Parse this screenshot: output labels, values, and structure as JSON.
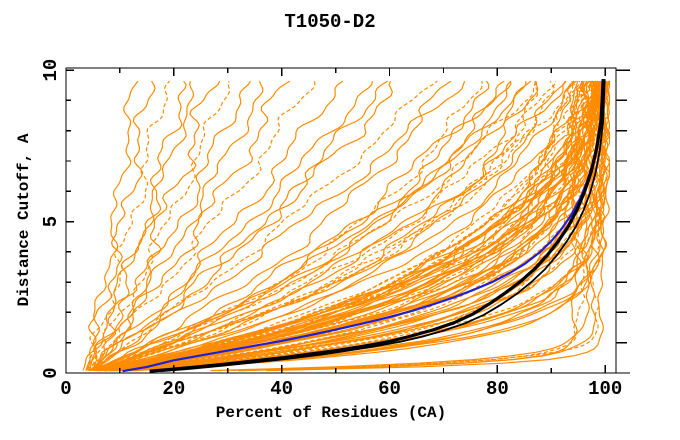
{
  "chart_data": {
    "type": "line",
    "title": "T1050-D2",
    "xlabel": "Percent of Residues (CA)",
    "ylabel": "Distance Cutoff, A",
    "xlim": [
      0,
      102
    ],
    "ylim": [
      0,
      10.07
    ],
    "x_major_ticks": [
      0,
      20,
      40,
      60,
      80,
      100
    ],
    "x_minor_ticks": [
      10,
      30,
      50,
      70,
      90
    ],
    "y_major_ticks": [
      0,
      5,
      10
    ],
    "y_minor_ticks": [
      1,
      2,
      3,
      4,
      6,
      7,
      8,
      9
    ],
    "grid": false,
    "legend": "none",
    "colors": {
      "ensemble": "#ff8c00",
      "highlight": "#1f1fd8",
      "reference": "#000000",
      "frame": "#000000",
      "background": "#ffffff"
    },
    "series": [
      {
        "name": "highlighted-model-blue",
        "color": "#1f1fd8",
        "width": 2.2,
        "dashed": false,
        "points": [
          [
            10.5,
            0.06
          ],
          [
            15,
            0.2
          ],
          [
            20,
            0.42
          ],
          [
            25,
            0.58
          ],
          [
            30,
            0.74
          ],
          [
            35,
            0.9
          ],
          [
            40,
            1.06
          ],
          [
            45,
            1.24
          ],
          [
            50,
            1.43
          ],
          [
            55,
            1.63
          ],
          [
            60,
            1.85
          ],
          [
            64,
            2.04
          ],
          [
            68,
            2.26
          ],
          [
            72,
            2.5
          ],
          [
            75.5,
            2.74
          ],
          [
            79,
            3.0
          ],
          [
            82.3,
            3.3
          ],
          [
            85.2,
            3.62
          ],
          [
            87.8,
            3.98
          ],
          [
            90,
            4.35
          ],
          [
            92,
            4.78
          ],
          [
            93.8,
            5.25
          ],
          [
            95.4,
            5.78
          ],
          [
            96.7,
            6.35
          ],
          [
            97.8,
            6.98
          ],
          [
            98.6,
            7.65
          ],
          [
            99.2,
            8.4
          ],
          [
            99.5,
            9.7
          ]
        ]
      },
      {
        "name": "reference-model-thick-black",
        "color": "#000000",
        "width": 3.2,
        "dashed": false,
        "points": [
          [
            15.5,
            0.06
          ],
          [
            20,
            0.13
          ],
          [
            25,
            0.21
          ],
          [
            30,
            0.3
          ],
          [
            35,
            0.4
          ],
          [
            40,
            0.5
          ],
          [
            45,
            0.62
          ],
          [
            50,
            0.74
          ],
          [
            55,
            0.88
          ],
          [
            60,
            1.04
          ],
          [
            64,
            1.22
          ],
          [
            68,
            1.42
          ],
          [
            72,
            1.66
          ],
          [
            75.5,
            1.95
          ],
          [
            78.5,
            2.28
          ],
          [
            81.5,
            2.65
          ],
          [
            84.5,
            3.05
          ],
          [
            87,
            3.45
          ],
          [
            89.3,
            3.9
          ],
          [
            91.3,
            4.35
          ],
          [
            93.2,
            4.85
          ],
          [
            94.8,
            5.4
          ],
          [
            96.2,
            6.0
          ],
          [
            97.4,
            6.65
          ],
          [
            98.4,
            7.4
          ],
          [
            99.2,
            8.3
          ],
          [
            99.7,
            9.7
          ]
        ]
      },
      {
        "name": "reference-model-thin-black",
        "color": "#000000",
        "width": 1.8,
        "dashed": false,
        "points": [
          [
            17.5,
            0.06
          ],
          [
            23,
            0.14
          ],
          [
            29,
            0.24
          ],
          [
            35,
            0.35
          ],
          [
            41,
            0.47
          ],
          [
            47,
            0.6
          ],
          [
            52,
            0.73
          ],
          [
            57,
            0.87
          ],
          [
            62,
            1.03
          ],
          [
            66,
            1.2
          ],
          [
            70,
            1.4
          ],
          [
            74,
            1.64
          ],
          [
            77.5,
            1.92
          ],
          [
            80.5,
            2.24
          ],
          [
            83.5,
            2.6
          ],
          [
            86.3,
            3.0
          ],
          [
            88.8,
            3.42
          ],
          [
            91,
            3.88
          ],
          [
            92.9,
            4.35
          ],
          [
            94.6,
            4.85
          ],
          [
            96,
            5.38
          ],
          [
            97.2,
            5.95
          ],
          [
            98.2,
            6.6
          ],
          [
            99,
            7.35
          ],
          [
            99.6,
            8.3
          ],
          [
            99.9,
            9.7
          ]
        ]
      }
    ],
    "ensemble": {
      "name": "predicted-model-curves",
      "color": "#ff8c00",
      "width": 1.2,
      "cutoff_range": [
        0.08,
        9.7
      ],
      "curve_model": "pct(c) = s + (e-s)*(1-exp(-c/tau))/(1-exp(-10/tau)) + jitter(j,ph); d=1 dashed",
      "curves": [
        [
          4,
          13,
          22,
          1.5,
          0.5,
          0
        ],
        [
          3.5,
          16,
          18,
          2,
          1.7,
          0
        ],
        [
          4,
          19,
          26,
          1.8,
          2.9,
          1
        ],
        [
          5,
          22,
          15,
          2.2,
          4.1,
          0
        ],
        [
          3,
          25,
          30,
          1.5,
          5.3,
          0
        ],
        [
          4.5,
          28,
          20,
          2.5,
          0.9,
          0
        ],
        [
          4,
          31,
          24,
          1.6,
          2.2,
          1
        ],
        [
          3.5,
          34,
          17,
          2.0,
          3.6,
          0
        ],
        [
          5,
          38,
          28,
          1.7,
          4.8,
          0
        ],
        [
          4,
          42,
          21,
          2.3,
          0.3,
          0
        ],
        [
          3.5,
          47,
          25,
          1.9,
          1.5,
          1
        ],
        [
          4.5,
          52,
          19,
          2.1,
          2.8,
          0
        ],
        [
          4,
          58,
          23,
          1.8,
          4.0,
          0
        ],
        [
          5,
          64,
          27,
          2.4,
          5.2,
          0
        ],
        [
          3.5,
          70,
          20,
          1.6,
          0.7,
          1
        ],
        [
          4,
          76,
          24,
          2.0,
          1.9,
          0
        ],
        [
          4.5,
          60,
          14,
          2.2,
          3.1,
          0
        ],
        [
          4,
          72,
          8,
          2,
          0.4,
          0
        ],
        [
          5,
          78,
          6.5,
          1.8,
          1.6,
          1
        ],
        [
          3.5,
          82,
          7.5,
          2.2,
          2.8,
          0
        ],
        [
          4.5,
          86,
          5.5,
          1.6,
          4.0,
          0
        ],
        [
          4,
          90,
          6,
          2.0,
          5.2,
          1
        ],
        [
          5,
          93,
          5,
          1.7,
          0.8,
          0
        ],
        [
          3.5,
          88,
          4.5,
          2.1,
          2.0,
          0
        ],
        [
          4,
          95,
          5.8,
          1.9,
          3.2,
          1
        ],
        [
          4.5,
          80,
          8.5,
          2.3,
          4.4,
          0
        ],
        [
          5,
          85,
          7,
          1.5,
          5.6,
          0
        ],
        [
          3.5,
          91,
          4.8,
          1.8,
          1.1,
          1
        ],
        [
          4,
          94,
          6.8,
          2.2,
          2.3,
          0
        ],
        [
          4.5,
          87,
          9,
          1.6,
          3.5,
          0
        ],
        [
          5,
          92,
          5.2,
          2.0,
          4.7,
          1
        ],
        [
          3.5,
          96,
          4.2,
          1.7,
          5.9,
          0
        ],
        [
          4,
          83,
          6.2,
          2.1,
          1.3,
          0
        ],
        [
          4.5,
          89,
          7.8,
          1.9,
          2.5,
          1
        ],
        [
          5,
          94.5,
          4.6,
          1.5,
          3.7,
          0
        ],
        [
          4,
          99.8,
          0.85,
          1.2,
          0.3,
          0
        ],
        [
          5,
          100.2,
          1.0,
          1.5,
          1.1,
          0
        ],
        [
          4.5,
          99.2,
          1.15,
          1.8,
          1.9,
          0
        ],
        [
          3.5,
          100.4,
          1.3,
          1.0,
          2.7,
          1
        ],
        [
          5.5,
          98.6,
          1.45,
          2.0,
          3.5,
          0
        ],
        [
          4,
          99.5,
          1.6,
          1.4,
          4.3,
          0
        ],
        [
          5,
          100.0,
          1.75,
          1.7,
          5.1,
          0
        ],
        [
          4.5,
          98.2,
          1.9,
          1.1,
          5.9,
          1
        ],
        [
          3.5,
          99.9,
          2.05,
          2.2,
          0.6,
          0
        ],
        [
          5.5,
          99.0,
          2.2,
          1.3,
          1.4,
          0
        ],
        [
          4,
          100.3,
          2.35,
          1.6,
          2.2,
          0
        ],
        [
          5,
          97.8,
          2.5,
          1.9,
          3.0,
          1
        ],
        [
          4.5,
          99.6,
          2.65,
          1.2,
          3.8,
          0
        ],
        [
          3.5,
          98.9,
          2.8,
          2.1,
          4.6,
          0
        ],
        [
          5.5,
          100.1,
          2.95,
          1.5,
          5.4,
          0
        ],
        [
          4,
          97.4,
          3.1,
          1.8,
          0.1,
          1
        ],
        [
          5,
          99.3,
          3.25,
          1.0,
          0.9,
          0
        ],
        [
          4.5,
          98.5,
          3.4,
          2.3,
          1.7,
          0
        ],
        [
          3.5,
          99.7,
          3.55,
          1.4,
          2.5,
          0
        ],
        [
          5.5,
          96.9,
          3.7,
          1.7,
          3.3,
          1
        ],
        [
          4,
          100.0,
          0.9,
          1.1,
          4.1,
          0
        ],
        [
          5,
          98.8,
          1.05,
          2.0,
          4.9,
          0
        ],
        [
          4.5,
          99.9,
          1.2,
          1.3,
          5.7,
          0
        ],
        [
          3.5,
          97.2,
          1.35,
          1.6,
          0.4,
          1
        ],
        [
          5.5,
          99.4,
          1.5,
          1.9,
          1.2,
          0
        ],
        [
          4,
          98.0,
          1.65,
          1.2,
          2.0,
          0
        ],
        [
          5,
          100.2,
          1.8,
          2.2,
          2.8,
          0
        ],
        [
          4.5,
          96.6,
          1.95,
          1.5,
          3.6,
          1
        ],
        [
          3.5,
          99.1,
          2.1,
          1.8,
          4.4,
          0
        ],
        [
          5.5,
          98.3,
          2.25,
          1.1,
          5.2,
          0
        ],
        [
          4,
          99.8,
          2.4,
          2.1,
          6.0,
          0
        ],
        [
          5,
          96.2,
          2.55,
          1.4,
          0.7,
          1
        ],
        [
          4.5,
          99.5,
          2.7,
          1.7,
          1.5,
          0
        ],
        [
          3.5,
          98.7,
          2.85,
          1.0,
          2.3,
          0
        ],
        [
          5.5,
          100.3,
          3.0,
          2.3,
          3.1,
          0
        ],
        [
          4,
          95.8,
          3.15,
          1.6,
          3.9,
          1
        ],
        [
          5,
          99.2,
          3.3,
          1.9,
          4.7,
          0
        ],
        [
          4.5,
          97.6,
          3.45,
          1.2,
          5.5,
          0
        ],
        [
          3.5,
          100.1,
          3.6,
          2.0,
          0.2,
          0
        ],
        [
          5.5,
          95.4,
          3.75,
          1.3,
          1.0,
          1
        ],
        [
          4,
          99.6,
          0.95,
          1.6,
          1.8,
          0
        ],
        [
          5,
          98.4,
          1.1,
          1.9,
          2.6,
          0
        ],
        [
          4.5,
          100.0,
          1.25,
          1.1,
          3.4,
          0
        ],
        [
          3.5,
          96.4,
          1.4,
          2.2,
          4.2,
          1
        ],
        [
          5.5,
          99.0,
          1.55,
          1.5,
          5.0,
          0
        ],
        [
          4,
          97.0,
          1.7,
          1.8,
          5.8,
          0
        ],
        [
          5,
          99.7,
          1.85,
          1.0,
          0.5,
          0
        ],
        [
          4.5,
          95.0,
          2.0,
          2.1,
          1.3,
          1
        ],
        [
          3.5,
          98.9,
          2.15,
          1.4,
          2.1,
          0
        ],
        [
          5.5,
          97.9,
          2.3,
          1.7,
          2.9,
          0
        ],
        [
          4,
          100.4,
          2.45,
          1.2,
          3.7,
          0
        ],
        [
          5,
          94.6,
          2.6,
          2.0,
          4.5,
          1
        ],
        [
          4.5,
          99.3,
          2.75,
          1.3,
          5.3,
          0
        ],
        [
          3.5,
          98.1,
          2.9,
          1.6,
          6.1,
          0
        ],
        [
          5.5,
          99.9,
          3.05,
          1.9,
          0.8,
          0
        ],
        [
          4,
          94.2,
          3.2,
          1.1,
          1.6,
          1
        ],
        [
          5,
          98.6,
          3.35,
          2.2,
          2.4,
          0
        ],
        [
          4.5,
          96.0,
          3.5,
          1.5,
          3.2,
          0
        ],
        [
          3.5,
          99.4,
          3.65,
          1.8,
          4.0,
          0
        ],
        [
          5.5,
          97.3,
          3.8,
          1.0,
          4.8,
          1
        ],
        [
          5,
          94.5,
          0.22,
          1,
          0.6,
          0
        ],
        [
          6,
          95.5,
          0.26,
          1.2,
          1.8,
          1
        ],
        [
          5.5,
          96.5,
          0.3,
          0.9,
          3.0,
          0
        ],
        [
          6,
          97.5,
          0.24,
          1.1,
          4.2,
          0
        ],
        [
          5,
          98.5,
          0.28,
          1.3,
          5.4,
          1
        ],
        [
          6.5,
          99.3,
          0.2,
          0.8,
          0.2,
          0
        ]
      ]
    }
  }
}
